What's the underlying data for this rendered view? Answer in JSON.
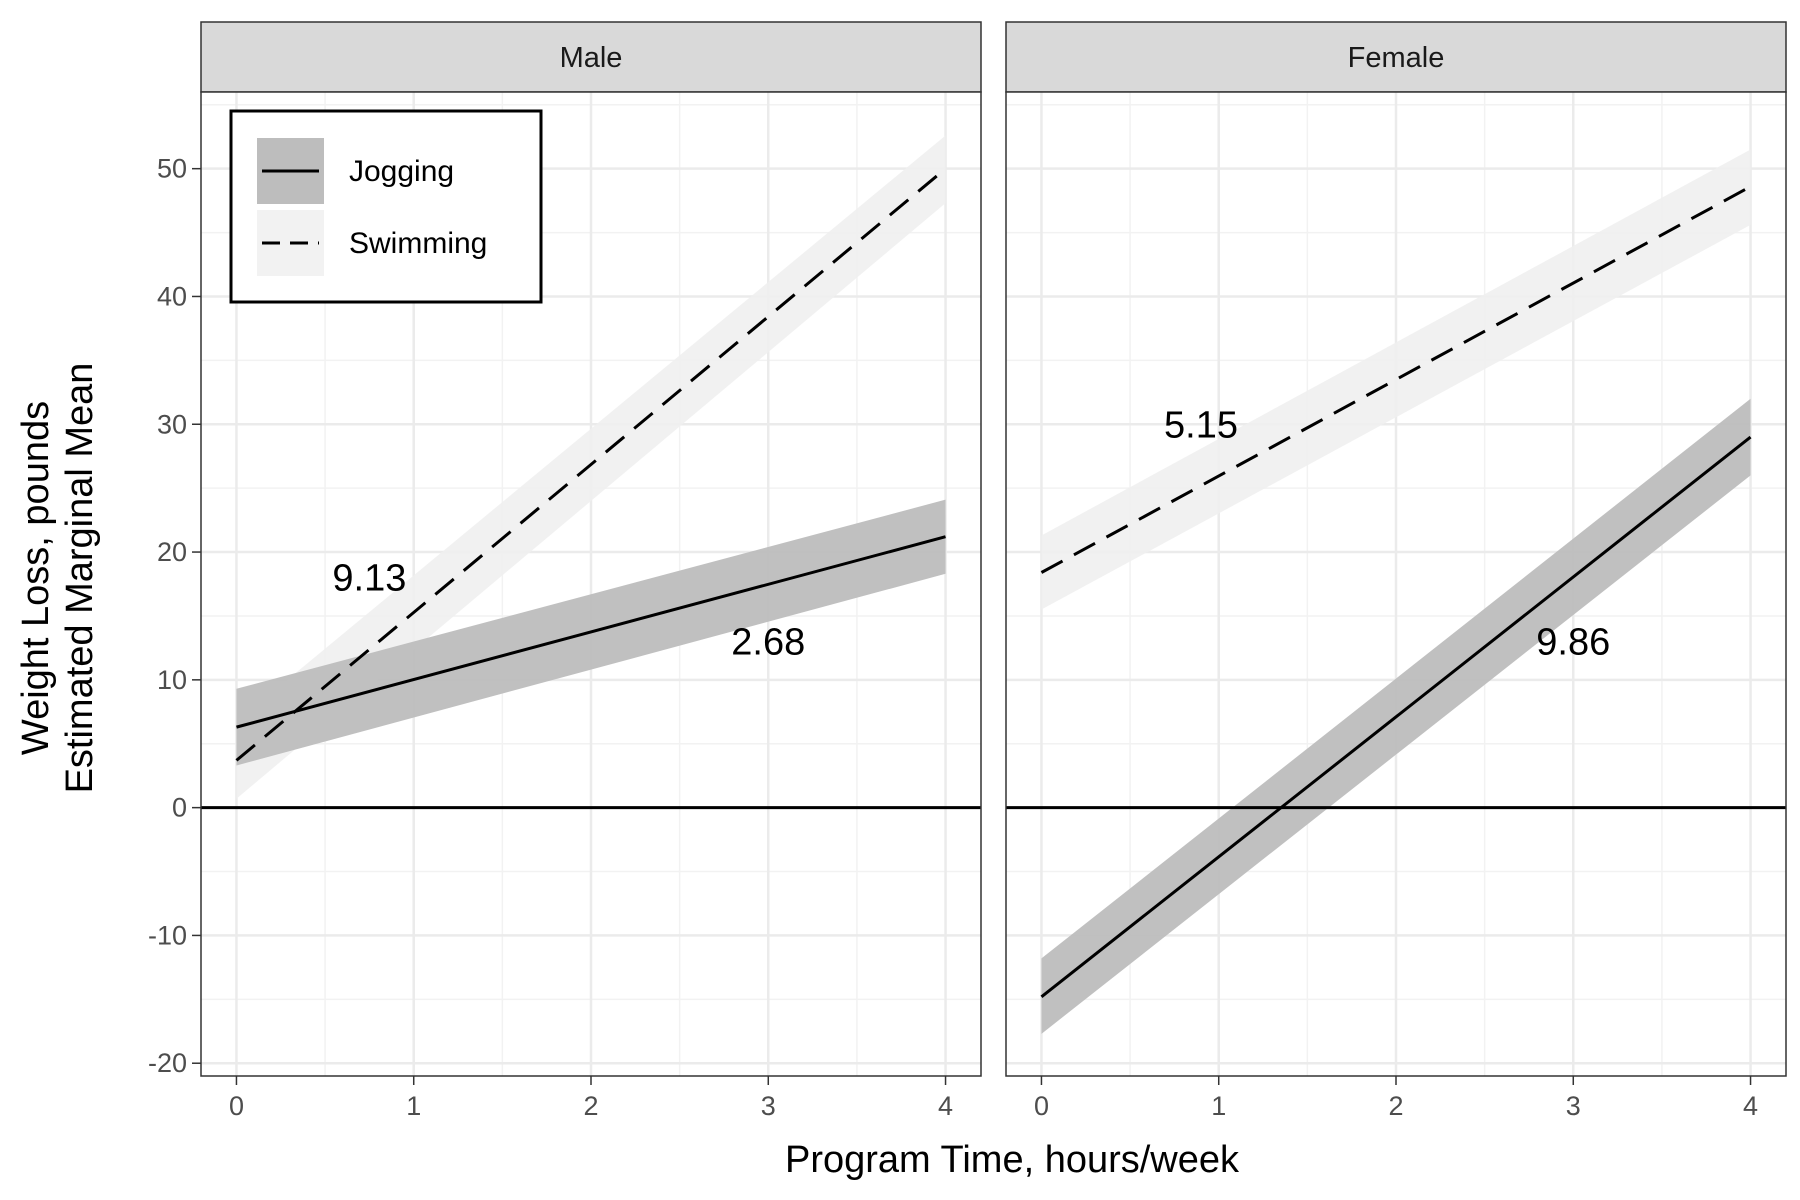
{
  "chart_data": {
    "type": "line",
    "xlabel": "Program Time, hours/week",
    "ylabel_lines": [
      "Weight Loss, pounds",
      "Estimated Marginal Mean"
    ],
    "xlim": [
      -0.2,
      4.2
    ],
    "ylim": [
      -21,
      56
    ],
    "x_ticks": [
      0,
      1,
      2,
      3,
      4
    ],
    "y_ticks": [
      -20,
      -10,
      0,
      10,
      20,
      30,
      40,
      50
    ],
    "grid": true,
    "reference_line_y": 0,
    "legend": {
      "position": "top-left",
      "entries": [
        {
          "label": "Jogging",
          "linetype": "solid",
          "fill": "#bdbdbd"
        },
        {
          "label": "Swimming",
          "linetype": "dashed",
          "fill": "#f2f2f2"
        }
      ]
    },
    "panels": [
      {
        "label": "Male",
        "series": [
          {
            "name": "Jogging",
            "linetype": "solid",
            "band_color": "#bdbdbd",
            "x": [
              0,
              4
            ],
            "y": [
              6.3,
              21.2
            ],
            "lower": [
              3.3,
              18.3
            ],
            "upper": [
              9.3,
              24.1
            ]
          },
          {
            "name": "Swimming",
            "linetype": "dashed",
            "band_color": "#f0f0f0",
            "x": [
              0,
              4
            ],
            "y": [
              3.7,
              50.0
            ],
            "lower": [
              0.7,
              47.3
            ],
            "upper": [
              6.7,
              52.6
            ]
          }
        ],
        "annotations": [
          {
            "text": "9.13",
            "x": 0.75,
            "y": 18
          },
          {
            "text": "2.68",
            "x": 3.0,
            "y": 13
          }
        ]
      },
      {
        "label": "Female",
        "series": [
          {
            "name": "Jogging",
            "linetype": "solid",
            "band_color": "#bdbdbd",
            "x": [
              0,
              4
            ],
            "y": [
              -14.8,
              29.0
            ],
            "lower": [
              -17.7,
              26.0
            ],
            "upper": [
              -11.8,
              32.0
            ]
          },
          {
            "name": "Swimming",
            "linetype": "dashed",
            "band_color": "#f0f0f0",
            "x": [
              0,
              4
            ],
            "y": [
              18.4,
              48.6
            ],
            "lower": [
              15.5,
              45.6
            ],
            "upper": [
              21.3,
              51.5
            ]
          }
        ],
        "annotations": [
          {
            "text": "5.15",
            "x": 0.9,
            "y": 30
          },
          {
            "text": "9.86",
            "x": 3.0,
            "y": 13
          }
        ]
      }
    ]
  }
}
